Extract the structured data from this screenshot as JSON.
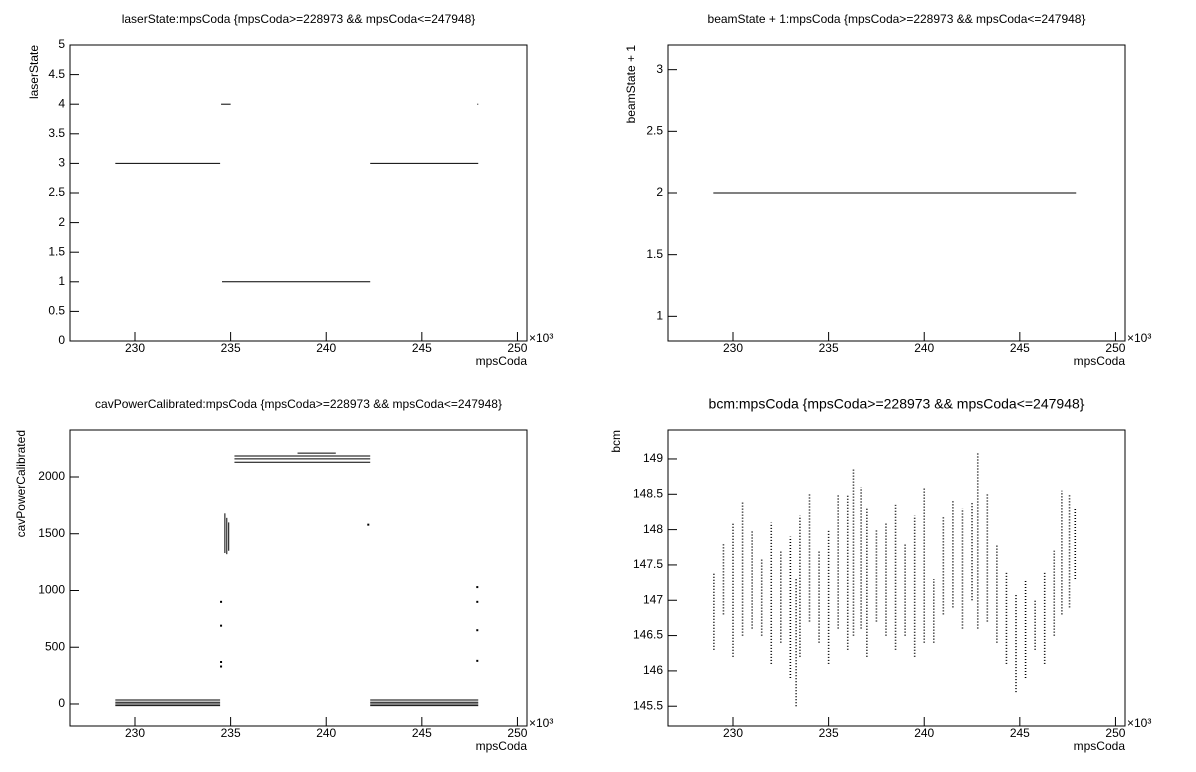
{
  "chart_data": [
    {
      "type": "line",
      "title": "laserState:mpsCoda {mpsCoda>=228973 && mpsCoda<=247948}",
      "x_label": "mpsCoda",
      "y_label": "laserState",
      "x_exponent": "×10³",
      "color": "#000000",
      "line_style": "solid",
      "x": [
        228.97,
        234.45,
        234.45,
        234.55,
        242.3,
        242.3,
        242.3,
        247.95,
        247.95,
        234.5,
        235.0,
        235.0,
        247.9,
        247.95
      ],
      "values": [
        3,
        3,
        null,
        1,
        1,
        null,
        3,
        3,
        null,
        4,
        4,
        null,
        4,
        4
      ],
      "xlim": [
        226.6,
        250.5
      ],
      "xticks": [
        230,
        235,
        240,
        245,
        250
      ],
      "ylim": [
        0,
        5
      ],
      "yticks": [
        0,
        0.5,
        1,
        1.5,
        2,
        2.5,
        3,
        3.5,
        4,
        4.5,
        5
      ]
    },
    {
      "type": "line",
      "title": "beamState + 1:mpsCoda {mpsCoda>=228973 && mpsCoda<=247948}",
      "x_label": "mpsCoda",
      "y_label": "beamState + 1",
      "x_exponent": "×10³",
      "color": "#000000",
      "line_style": "solid",
      "x": [
        228.97,
        247.95
      ],
      "values": [
        2,
        2
      ],
      "xlim": [
        226.6,
        250.5
      ],
      "xticks": [
        230,
        235,
        240,
        245,
        250
      ],
      "ylim": [
        0.8,
        3.2
      ],
      "yticks": [
        1,
        1.5,
        2,
        2.5,
        3
      ]
    },
    {
      "type": "line",
      "title": "cavPowerCalibrated:mpsCoda {mpsCoda>=228973 && mpsCoda<=247948}",
      "x_label": "mpsCoda",
      "y_label": "cavPowerCalibrated",
      "x_exponent": "×10³",
      "color": "#000000",
      "line_style": "solid",
      "x": [
        228.97,
        234.45,
        234.45,
        228.97,
        234.45,
        234.45,
        228.97,
        234.45,
        234.45,
        228.97,
        234.45,
        234.45,
        242.3,
        247.95,
        247.95,
        242.3,
        247.95,
        247.95,
        242.3,
        247.95,
        247.95,
        242.3,
        247.95,
        247.95,
        235.2,
        242.3,
        242.3,
        235.2,
        242.3,
        242.3,
        235.2,
        242.3,
        242.3,
        238.5,
        240.5,
        240.5,
        234.7,
        234.7,
        234.7,
        234.8,
        234.8,
        234.8,
        234.9,
        234.9,
        234.9,
        234.5,
        234.5,
        234.5,
        234.5,
        234.5,
        234.5,
        234.5,
        242.2,
        242.2,
        247.9,
        247.9,
        247.9,
        247.9,
        247.9,
        247.9,
        247.9,
        247.9,
        247.9
      ],
      "values": [
        35,
        35,
        null,
        15,
        15,
        null,
        0,
        0,
        null,
        -15,
        -15,
        null,
        35,
        35,
        null,
        15,
        15,
        null,
        0,
        0,
        null,
        -15,
        -15,
        null,
        2185,
        2185,
        null,
        2160,
        2160,
        null,
        2130,
        2130,
        null,
        2210,
        2210,
        null,
        1330,
        1680,
        null,
        1320,
        1640,
        null,
        1350,
        1600,
        null,
        900,
        null,
        690,
        null,
        370,
        null,
        330,
        null,
        1580,
        null,
        1030,
        null,
        900,
        null,
        650,
        null,
        380,
        null
      ],
      "xlim": [
        226.6,
        250.5
      ],
      "xticks": [
        230,
        235,
        240,
        245,
        250
      ],
      "ylim": [
        -194,
        2414
      ],
      "yticks": [
        0,
        500,
        1000,
        1500,
        2000
      ]
    },
    {
      "type": "line",
      "title": "bcm:mpsCoda {mpsCoda>=228973 && mpsCoda<=247948}",
      "x_label": "mpsCoda",
      "y_label": "bcm",
      "x_exponent": "×10³",
      "color": "#000000",
      "line_style": "dotted",
      "x": [
        229.0,
        229.0,
        229.0,
        229.5,
        229.5,
        229.5,
        230.0,
        230.0,
        230.0,
        230.5,
        230.5,
        230.5,
        231.0,
        231.0,
        231.0,
        231.5,
        231.5,
        231.5,
        232.0,
        232.0,
        232.0,
        232.5,
        232.5,
        232.5,
        233.0,
        233.0,
        233.0,
        233.3,
        233.3,
        233.3,
        233.5,
        233.5,
        233.5,
        234.0,
        234.0,
        234.0,
        234.5,
        234.5,
        234.5,
        235.0,
        235.0,
        235.0,
        235.5,
        235.5,
        235.5,
        236.0,
        236.0,
        236.0,
        236.3,
        236.3,
        236.3,
        236.7,
        236.7,
        236.7,
        237.0,
        237.0,
        237.0,
        237.5,
        237.5,
        237.5,
        238.0,
        238.0,
        238.0,
        238.5,
        238.5,
        238.5,
        239.0,
        239.0,
        239.0,
        239.5,
        239.5,
        239.5,
        240.0,
        240.0,
        240.0,
        240.5,
        240.5,
        240.5,
        241.0,
        241.0,
        241.0,
        241.5,
        241.5,
        241.5,
        242.0,
        242.0,
        242.0,
        242.5,
        242.5,
        242.5,
        242.8,
        242.8,
        242.8,
        243.3,
        243.3,
        243.3,
        243.8,
        243.8,
        243.8,
        244.3,
        244.3,
        244.3,
        244.8,
        244.8,
        244.8,
        245.3,
        245.3,
        245.3,
        245.8,
        245.8,
        245.8,
        246.3,
        246.3,
        246.3,
        246.8,
        246.8,
        246.8,
        247.2,
        247.2,
        247.2,
        247.6,
        247.6,
        247.6,
        247.9,
        247.9
      ],
      "values": [
        146.3,
        147.4,
        null,
        146.8,
        147.8,
        null,
        146.2,
        148.1,
        null,
        146.5,
        148.4,
        null,
        146.6,
        148.0,
        null,
        146.5,
        147.6,
        null,
        146.1,
        148.1,
        null,
        146.4,
        147.7,
        null,
        145.9,
        147.9,
        null,
        145.5,
        147.3,
        null,
        146.2,
        148.2,
        null,
        146.7,
        148.5,
        null,
        146.4,
        147.7,
        null,
        146.1,
        148.0,
        null,
        146.6,
        148.5,
        null,
        146.3,
        148.5,
        null,
        146.5,
        148.85,
        null,
        146.6,
        148.6,
        null,
        146.2,
        148.3,
        null,
        146.7,
        148.0,
        null,
        146.5,
        148.1,
        null,
        146.3,
        148.35,
        null,
        146.5,
        147.8,
        null,
        146.2,
        148.2,
        null,
        146.4,
        148.6,
        null,
        146.4,
        147.3,
        null,
        146.8,
        148.2,
        null,
        146.9,
        148.4,
        null,
        146.6,
        148.3,
        null,
        147.0,
        148.4,
        null,
        146.6,
        149.1,
        null,
        146.7,
        148.5,
        null,
        146.4,
        147.8,
        null,
        146.1,
        147.4,
        null,
        145.7,
        147.1,
        null,
        145.9,
        147.3,
        null,
        146.3,
        147.0,
        null,
        146.1,
        147.4,
        null,
        146.5,
        147.7,
        null,
        146.8,
        148.55,
        null,
        146.9,
        148.5,
        null,
        147.3,
        148.3
      ],
      "xlim": [
        226.6,
        250.5
      ],
      "xticks": [
        230,
        235,
        240,
        245,
        250
      ],
      "ylim": [
        145.22,
        149.41
      ],
      "yticks": [
        145.5,
        146,
        146.5,
        147,
        147.5,
        148,
        148.5,
        149
      ]
    }
  ]
}
